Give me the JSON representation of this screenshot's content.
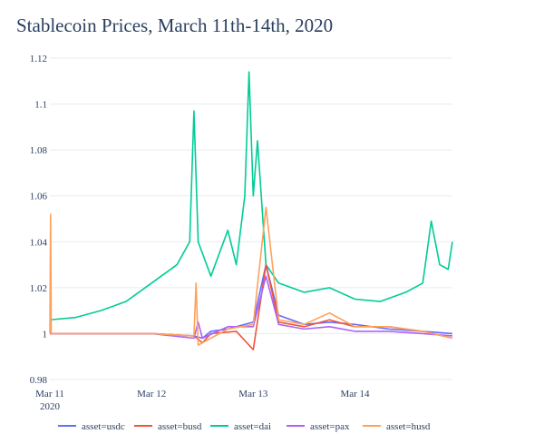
{
  "chart_data": {
    "type": "line",
    "title": "Stablecoin Prices, March 11th-14th, 2020",
    "xlabel": "",
    "ylabel": "",
    "ylim": [
      0.98,
      1.12
    ],
    "xlim": [
      "2020-03-11 00:00",
      "2020-03-14 23:00"
    ],
    "y_ticks": [
      "0.98",
      "1",
      "1.02",
      "1.04",
      "1.06",
      "1.08",
      "1.1",
      "1.12"
    ],
    "y_tick_values": [
      0.98,
      1.0,
      1.02,
      1.04,
      1.06,
      1.08,
      1.1,
      1.12
    ],
    "x_ticks": [
      "Mar 11",
      "Mar 12",
      "Mar 13",
      "Mar 14"
    ],
    "x_tick_values": [
      "2020-03-11 00:00",
      "2020-03-12 00:00",
      "2020-03-13 00:00",
      "2020-03-14 00:00"
    ],
    "x_tick_sublabel": "2020",
    "grid": true,
    "legend_position": "bottom",
    "series": [
      {
        "name": "asset=usdc",
        "color": "#636efa",
        "points": [
          [
            "2020-03-11 00:00",
            1.0
          ],
          [
            "2020-03-11 12:00",
            1.0
          ],
          [
            "2020-03-12 00:00",
            1.0
          ],
          [
            "2020-03-12 10:00",
            0.999
          ],
          [
            "2020-03-12 12:00",
            0.998
          ],
          [
            "2020-03-12 14:00",
            1.001
          ],
          [
            "2020-03-12 18:00",
            1.002
          ],
          [
            "2020-03-13 00:00",
            1.005
          ],
          [
            "2020-03-13 03:00",
            1.03
          ],
          [
            "2020-03-13 06:00",
            1.008
          ],
          [
            "2020-03-13 12:00",
            1.004
          ],
          [
            "2020-03-13 18:00",
            1.005
          ],
          [
            "2020-03-14 00:00",
            1.004
          ],
          [
            "2020-03-14 08:00",
            1.002
          ],
          [
            "2020-03-14 16:00",
            1.001
          ],
          [
            "2020-03-14 23:00",
            1.0
          ]
        ]
      },
      {
        "name": "asset=busd",
        "color": "#ef553b",
        "points": [
          [
            "2020-03-11 00:00",
            1.0
          ],
          [
            "2020-03-11 12:00",
            1.0
          ],
          [
            "2020-03-12 00:00",
            1.0
          ],
          [
            "2020-03-12 10:00",
            0.999
          ],
          [
            "2020-03-12 12:00",
            0.996
          ],
          [
            "2020-03-12 14:00",
            1.0
          ],
          [
            "2020-03-12 20:00",
            1.001
          ],
          [
            "2020-03-13 00:00",
            0.993
          ],
          [
            "2020-03-13 03:00",
            1.03
          ],
          [
            "2020-03-13 06:00",
            1.005
          ],
          [
            "2020-03-13 12:00",
            1.003
          ],
          [
            "2020-03-13 18:00",
            1.006
          ],
          [
            "2020-03-14 00:00",
            1.003
          ],
          [
            "2020-03-14 08:00",
            1.003
          ],
          [
            "2020-03-14 16:00",
            1.001
          ],
          [
            "2020-03-14 23:00",
            0.998
          ]
        ]
      },
      {
        "name": "asset=dai",
        "color": "#00cc96",
        "points": [
          [
            "2020-03-11 00:00",
            1.006
          ],
          [
            "2020-03-11 06:00",
            1.007
          ],
          [
            "2020-03-11 12:00",
            1.01
          ],
          [
            "2020-03-11 18:00",
            1.014
          ],
          [
            "2020-03-12 00:00",
            1.022
          ],
          [
            "2020-03-12 06:00",
            1.03
          ],
          [
            "2020-03-12 09:00",
            1.04
          ],
          [
            "2020-03-12 10:00",
            1.097
          ],
          [
            "2020-03-12 11:00",
            1.04
          ],
          [
            "2020-03-12 14:00",
            1.025
          ],
          [
            "2020-03-12 18:00",
            1.045
          ],
          [
            "2020-03-12 20:00",
            1.03
          ],
          [
            "2020-03-12 22:00",
            1.06
          ],
          [
            "2020-03-12 23:00",
            1.114
          ],
          [
            "2020-03-13 00:00",
            1.06
          ],
          [
            "2020-03-13 01:00",
            1.084
          ],
          [
            "2020-03-13 03:00",
            1.03
          ],
          [
            "2020-03-13 06:00",
            1.022
          ],
          [
            "2020-03-13 12:00",
            1.018
          ],
          [
            "2020-03-13 18:00",
            1.02
          ],
          [
            "2020-03-14 00:00",
            1.015
          ],
          [
            "2020-03-14 06:00",
            1.014
          ],
          [
            "2020-03-14 12:00",
            1.018
          ],
          [
            "2020-03-14 16:00",
            1.022
          ],
          [
            "2020-03-14 18:00",
            1.049
          ],
          [
            "2020-03-14 20:00",
            1.03
          ],
          [
            "2020-03-14 22:00",
            1.028
          ],
          [
            "2020-03-14 23:00",
            1.04
          ]
        ]
      },
      {
        "name": "asset=pax",
        "color": "#ab63fa",
        "points": [
          [
            "2020-03-11 00:00",
            1.0
          ],
          [
            "2020-03-11 12:00",
            1.0
          ],
          [
            "2020-03-12 00:00",
            1.0
          ],
          [
            "2020-03-12 10:00",
            0.998
          ],
          [
            "2020-03-12 11:00",
            1.005
          ],
          [
            "2020-03-12 12:00",
            0.998
          ],
          [
            "2020-03-12 18:00",
            1.003
          ],
          [
            "2020-03-13 00:00",
            1.003
          ],
          [
            "2020-03-13 03:00",
            1.025
          ],
          [
            "2020-03-13 06:00",
            1.004
          ],
          [
            "2020-03-13 12:00",
            1.002
          ],
          [
            "2020-03-13 18:00",
            1.003
          ],
          [
            "2020-03-14 00:00",
            1.001
          ],
          [
            "2020-03-14 08:00",
            1.001
          ],
          [
            "2020-03-14 16:00",
            1.0
          ],
          [
            "2020-03-14 23:00",
            0.999
          ]
        ]
      },
      {
        "name": "asset=husd",
        "color": "#ffa15a",
        "points": [
          [
            "2020-03-11 00:00",
            1.0
          ],
          [
            "2020-03-11 00:10",
            1.052
          ],
          [
            "2020-03-11 00:20",
            1.0
          ],
          [
            "2020-03-11 12:00",
            1.0
          ],
          [
            "2020-03-12 00:00",
            1.0
          ],
          [
            "2020-03-12 10:00",
            0.999
          ],
          [
            "2020-03-12 10:30",
            1.022
          ],
          [
            "2020-03-12 11:00",
            0.995
          ],
          [
            "2020-03-12 18:00",
            1.002
          ],
          [
            "2020-03-13 00:00",
            1.004
          ],
          [
            "2020-03-13 03:00",
            1.055
          ],
          [
            "2020-03-13 06:00",
            1.006
          ],
          [
            "2020-03-13 12:00",
            1.004
          ],
          [
            "2020-03-13 18:00",
            1.009
          ],
          [
            "2020-03-14 00:00",
            1.003
          ],
          [
            "2020-03-14 08:00",
            1.003
          ],
          [
            "2020-03-14 16:00",
            1.001
          ],
          [
            "2020-03-14 23:00",
            0.998
          ]
        ]
      }
    ]
  }
}
